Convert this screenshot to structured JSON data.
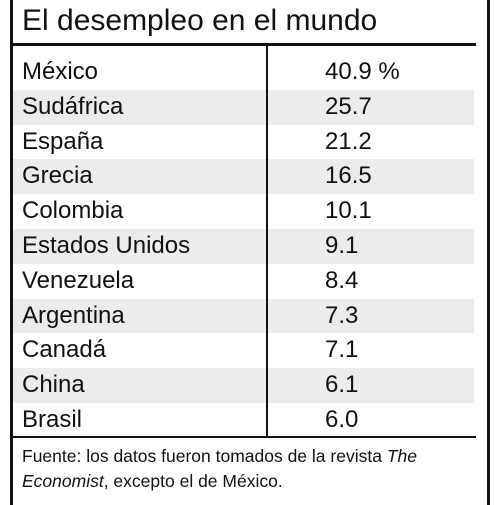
{
  "title": "El desempleo en el mundo",
  "chart_data": {
    "type": "table",
    "title": "El desempleo en el mundo",
    "columns": [
      "",
      ""
    ],
    "rows": [
      {
        "country": "México",
        "value": "40.9 %"
      },
      {
        "country": "Sudáfrica",
        "value": "25.7"
      },
      {
        "country": "España",
        "value": "21.2"
      },
      {
        "country": "Grecia",
        "value": "16.5"
      },
      {
        "country": "Colombia",
        "value": "10.1"
      },
      {
        "country": "Estados Unidos",
        "value": "9.1"
      },
      {
        "country": "Venezuela",
        "value": "8.4"
      },
      {
        "country": "Argentina",
        "value": "7.3"
      },
      {
        "country": "Canadá",
        "value": "7.1"
      },
      {
        "country": "China",
        "value": "6.1"
      },
      {
        "country": "Brasil",
        "value": "6.0"
      }
    ]
  },
  "source": {
    "prefix": "Fuente: los datos fueron tomados de la revista",
    "publication": "The Economist",
    "suffix": ", excepto el de México."
  },
  "colors": {
    "row_shade": "#ececec",
    "rule": "#111111",
    "text": "#111111"
  }
}
